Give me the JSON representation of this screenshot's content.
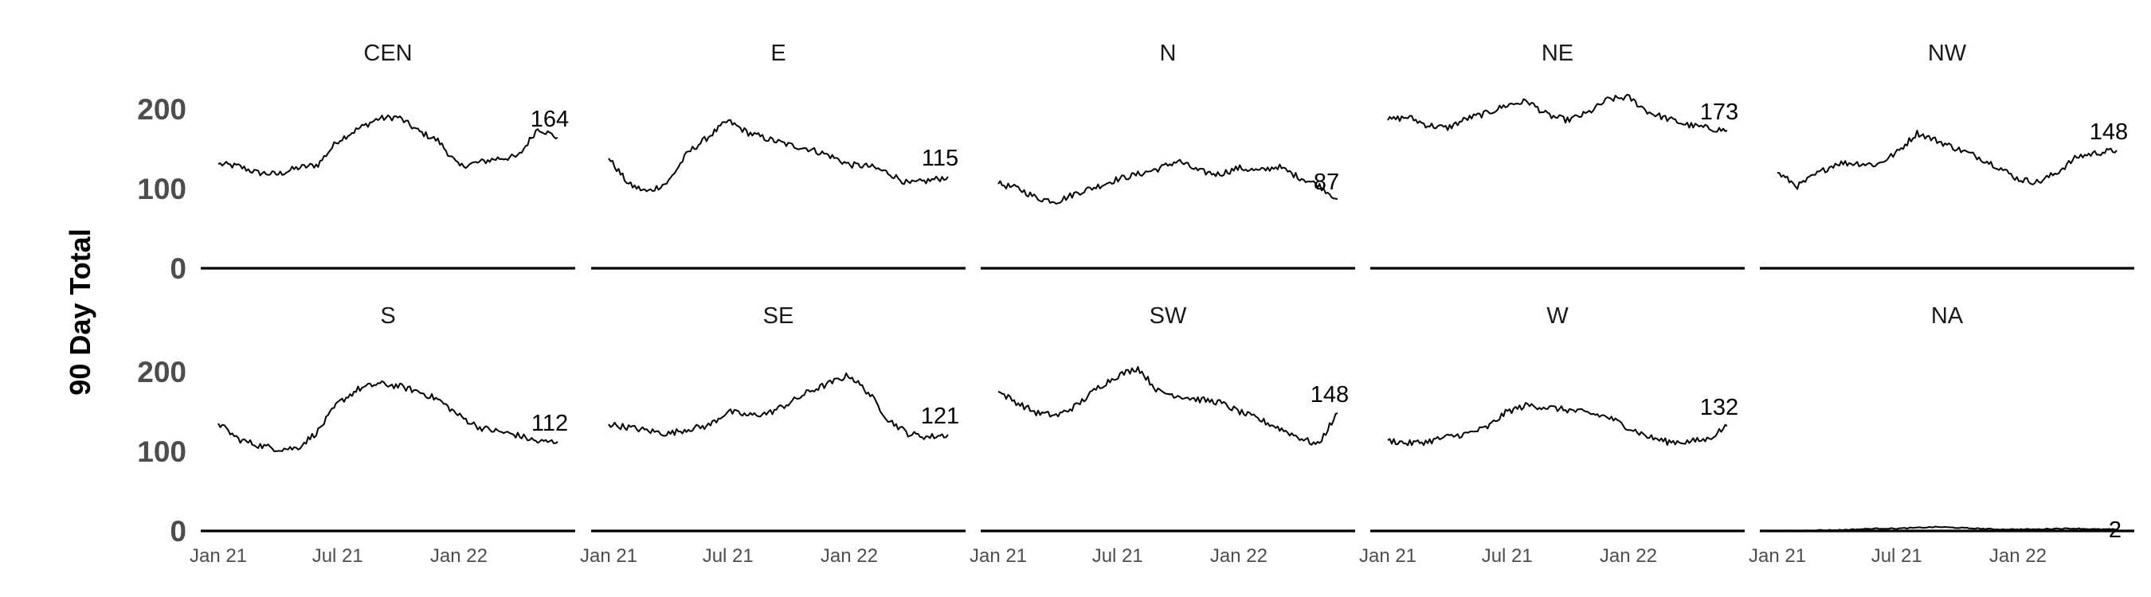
{
  "chart_data": {
    "type": "line",
    "ylabel": "90 Day Total",
    "ylim": [
      0,
      220
    ],
    "yticks": [
      0,
      100,
      200
    ],
    "xlim": [
      "2021-01-01",
      "2022-05-31"
    ],
    "xticks": [
      {
        "date": "2021-01-01",
        "label": "Jan 21"
      },
      {
        "date": "2021-07-01",
        "label": "Jul 21"
      },
      {
        "date": "2022-01-01",
        "label": "Jan 22"
      }
    ],
    "grid": false,
    "line_color": "#000000",
    "baseline_color": "#000000",
    "x": [
      "2021-01-01",
      "2021-02-01",
      "2021-03-01",
      "2021-04-01",
      "2021-05-01",
      "2021-06-01",
      "2021-07-01",
      "2021-08-01",
      "2021-09-01",
      "2021-10-01",
      "2021-11-01",
      "2021-12-01",
      "2022-01-01",
      "2022-02-01",
      "2022-03-01",
      "2022-04-01",
      "2022-05-01",
      "2022-05-31"
    ],
    "facets": [
      {
        "name": "CEN",
        "end_label": "164",
        "values": [
          131,
          128,
          120,
          118,
          126,
          130,
          160,
          175,
          188,
          190,
          172,
          160,
          128,
          133,
          138,
          140,
          176,
          164
        ]
      },
      {
        "name": "E",
        "end_label": "115",
        "values": [
          138,
          105,
          96,
          108,
          145,
          165,
          185,
          170,
          162,
          155,
          150,
          142,
          130,
          128,
          120,
          106,
          110,
          115
        ]
      },
      {
        "name": "N",
        "end_label": "87",
        "values": [
          106,
          100,
          88,
          84,
          95,
          103,
          112,
          118,
          125,
          135,
          122,
          118,
          126,
          122,
          128,
          115,
          105,
          87
        ]
      },
      {
        "name": "NE",
        "end_label": "173",
        "values": [
          186,
          190,
          180,
          176,
          188,
          195,
          205,
          210,
          192,
          186,
          195,
          212,
          215,
          196,
          188,
          180,
          176,
          173
        ]
      },
      {
        "name": "NW",
        "end_label": "148",
        "values": [
          120,
          103,
          118,
          132,
          132,
          130,
          145,
          170,
          160,
          150,
          140,
          128,
          112,
          108,
          120,
          140,
          145,
          148
        ]
      },
      {
        "name": "S",
        "end_label": "112",
        "values": [
          135,
          115,
          108,
          103,
          104,
          125,
          160,
          178,
          185,
          182,
          175,
          165,
          145,
          130,
          125,
          120,
          112,
          112
        ]
      },
      {
        "name": "SE",
        "end_label": "121",
        "values": [
          134,
          130,
          126,
          122,
          128,
          132,
          150,
          145,
          148,
          160,
          175,
          185,
          196,
          172,
          140,
          122,
          118,
          121
        ]
      },
      {
        "name": "SW",
        "end_label": "148",
        "values": [
          175,
          160,
          148,
          145,
          158,
          180,
          195,
          205,
          175,
          170,
          165,
          162,
          150,
          140,
          130,
          118,
          108,
          148
        ]
      },
      {
        "name": "W",
        "end_label": "132",
        "values": [
          114,
          110,
          112,
          118,
          122,
          130,
          150,
          158,
          155,
          152,
          148,
          143,
          130,
          118,
          112,
          112,
          115,
          132
        ]
      },
      {
        "name": "NA",
        "end_label": "2",
        "values": [
          0,
          0,
          1,
          1,
          2,
          3,
          3,
          4,
          5,
          4,
          3,
          2,
          2,
          2,
          3,
          3,
          2,
          2
        ]
      }
    ]
  }
}
